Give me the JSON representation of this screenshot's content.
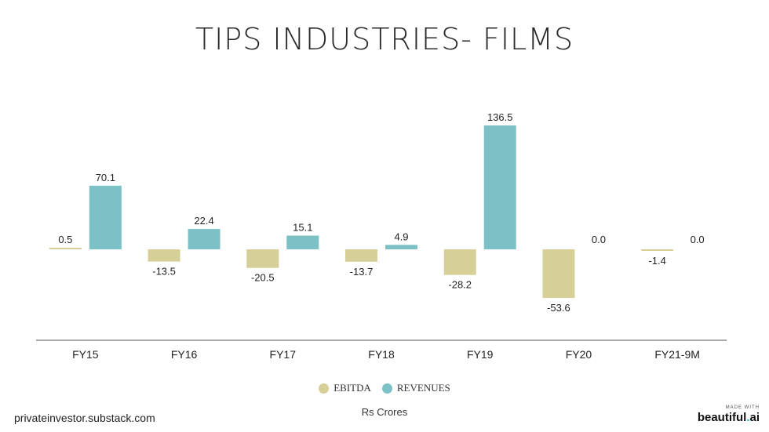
{
  "title": "TIPS INDUSTRIES- FILMS",
  "unit_label": "Rs Crores",
  "source": "privateinvestor.substack.com",
  "brand": {
    "made_with": "MADE WITH",
    "name": "beautiful",
    "dot": ".",
    "suffix": "ai"
  },
  "chart_data": {
    "type": "bar",
    "title": "TIPS INDUSTRIES- FILMS",
    "xlabel": "",
    "ylabel": "",
    "categories": [
      "FY15",
      "FY16",
      "FY17",
      "FY18",
      "FY19",
      "FY20",
      "FY21-9M"
    ],
    "series": [
      {
        "name": "EBITDA",
        "color": "#d6cf97",
        "values": [
          0.5,
          -13.5,
          -20.5,
          -13.7,
          -28.2,
          -53.6,
          -1.4
        ]
      },
      {
        "name": "REVENUES",
        "color": "#7bc1c6",
        "values": [
          70.1,
          22.4,
          15.1,
          4.9,
          136.5,
          0.0,
          0.0
        ]
      }
    ],
    "ylim": [
      -97,
      148
    ],
    "legend": "bottom-center",
    "grid": false
  }
}
